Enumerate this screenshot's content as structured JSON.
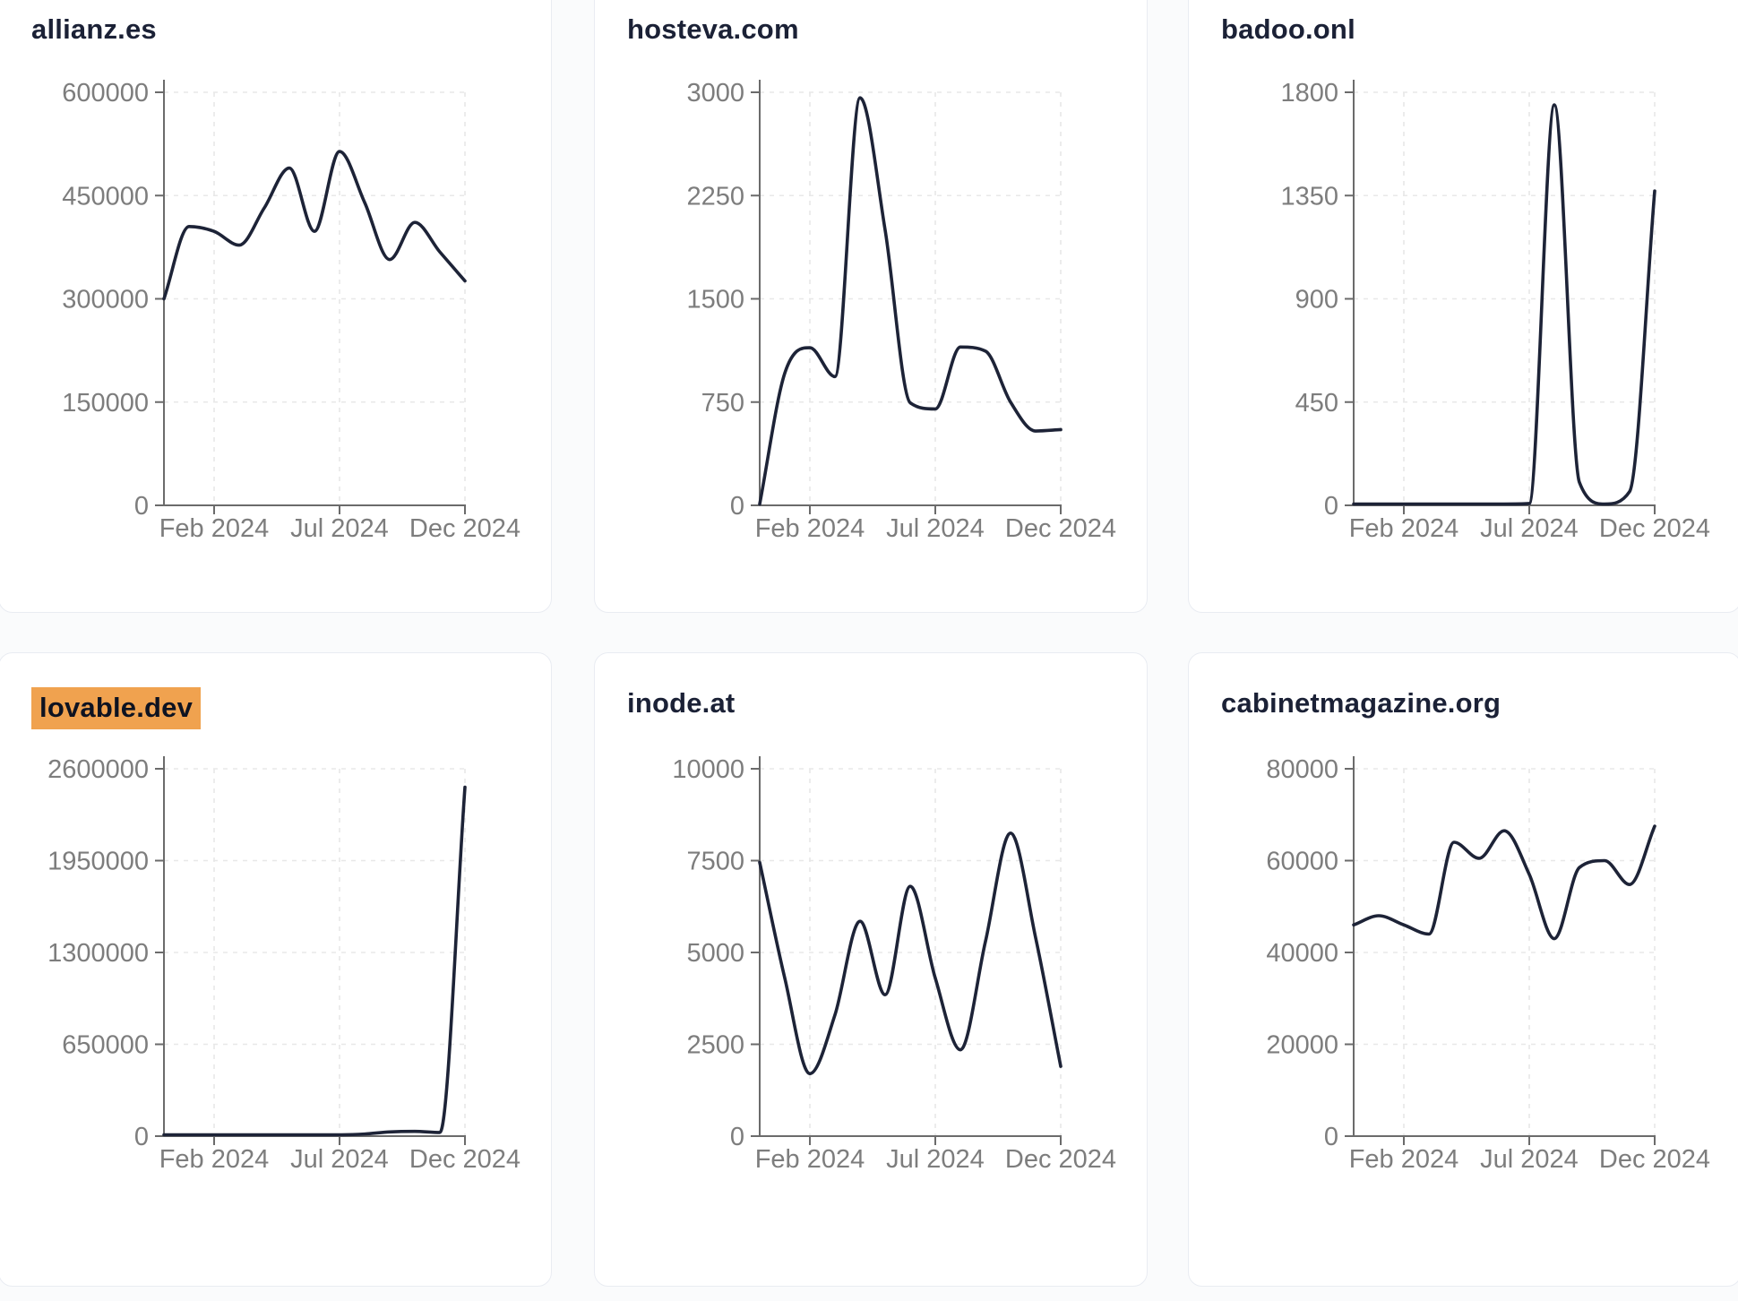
{
  "page": {
    "x_axis_tick_labels": [
      "Feb 2024",
      "Jul 2024",
      "Dec 2024"
    ]
  },
  "colors": {
    "line": "#1d2337",
    "title": "#1b2136",
    "highlight_bg": "#f0a24f",
    "highlight_text": "#0e1321",
    "axis": "#6b6b6b",
    "tick_label": "#7d7d7d",
    "grid": "#e8e8e8",
    "card_border": "#e9ecf2",
    "card_bg": "#ffffff",
    "page_bg": "#fafbfc"
  },
  "chart_data": [
    {
      "type": "line",
      "title": "allianz.es",
      "title_highlighted": false,
      "x": [
        "Dec 2023",
        "Jan 2024",
        "Feb 2024",
        "Mar 2024",
        "Apr 2024",
        "May 2024",
        "Jun 2024",
        "Jul 2024",
        "Aug 2024",
        "Sep 2024",
        "Oct 2024",
        "Nov 2024",
        "Dec 2024"
      ],
      "values": [
        300000,
        405000,
        398000,
        378000,
        432000,
        490000,
        398000,
        514000,
        440000,
        357000,
        411000,
        368000,
        326000
      ],
      "ylim": [
        0,
        600000
      ],
      "y_ticks": [
        0,
        150000,
        300000,
        450000,
        600000
      ],
      "x_tick_labels": [
        "Feb 2024",
        "Jul 2024",
        "Dec 2024"
      ],
      "x_tick_month_index": [
        2,
        7,
        12
      ],
      "grid": true,
      "legend": false
    },
    {
      "type": "line",
      "title": "hosteva.com",
      "title_highlighted": false,
      "x": [
        "Dec 2023",
        "Jan 2024",
        "Feb 2024",
        "Mar 2024",
        "Apr 2024",
        "May 2024",
        "Jun 2024",
        "Jul 2024",
        "Aug 2024",
        "Sep 2024",
        "Oct 2024",
        "Nov 2024",
        "Dec 2024"
      ],
      "values": [
        0,
        960,
        1145,
        935,
        2960,
        2000,
        745,
        700,
        1150,
        1120,
        750,
        540,
        550
      ],
      "ylim": [
        0,
        3000
      ],
      "y_ticks": [
        0,
        750,
        1500,
        2250,
        3000
      ],
      "x_tick_labels": [
        "Feb 2024",
        "Jul 2024",
        "Dec 2024"
      ],
      "x_tick_month_index": [
        2,
        7,
        12
      ],
      "grid": true,
      "legend": false
    },
    {
      "type": "line",
      "title": "badoo.onl",
      "title_highlighted": false,
      "x": [
        "Dec 2023",
        "Jan 2024",
        "Feb 2024",
        "Mar 2024",
        "Apr 2024",
        "May 2024",
        "Jun 2024",
        "Jul 2024",
        "Aug 2024",
        "Sep 2024",
        "Oct 2024",
        "Nov 2024",
        "Dec 2024"
      ],
      "values": [
        2,
        2,
        2,
        2,
        2,
        2,
        2,
        8,
        1745,
        100,
        5,
        60,
        1370
      ],
      "ylim": [
        0,
        1800
      ],
      "y_ticks": [
        0,
        450,
        900,
        1350,
        1800
      ],
      "x_tick_labels": [
        "Feb 2024",
        "Jul 2024",
        "Dec 2024"
      ],
      "x_tick_month_index": [
        2,
        7,
        12
      ],
      "grid": true,
      "legend": false
    },
    {
      "type": "line",
      "title": "lovable.dev",
      "title_highlighted": true,
      "x": [
        "Dec 2023",
        "Jan 2024",
        "Feb 2024",
        "Mar 2024",
        "Apr 2024",
        "May 2024",
        "Jun 2024",
        "Jul 2024",
        "Aug 2024",
        "Sep 2024",
        "Oct 2024",
        "Nov 2024",
        "Dec 2024"
      ],
      "values": [
        1500,
        2500,
        6000,
        9000,
        7000,
        5500,
        5000,
        6000,
        15000,
        30000,
        34000,
        26000,
        2470000
      ],
      "ylim": [
        0,
        2600000
      ],
      "y_ticks": [
        0,
        650000,
        1300000,
        1950000,
        2600000
      ],
      "x_tick_labels": [
        "Feb 2024",
        "Jul 2024",
        "Dec 2024"
      ],
      "x_tick_month_index": [
        2,
        7,
        12
      ],
      "grid": true,
      "legend": false
    },
    {
      "type": "line",
      "title": "inode.at",
      "title_highlighted": false,
      "x": [
        "Dec 2023",
        "Jan 2024",
        "Feb 2024",
        "Mar 2024",
        "Apr 2024",
        "May 2024",
        "Jun 2024",
        "Jul 2024",
        "Aug 2024",
        "Sep 2024",
        "Oct 2024",
        "Nov 2024",
        "Dec 2024"
      ],
      "values": [
        7450,
        4300,
        1700,
        3300,
        5850,
        3850,
        6800,
        4300,
        2350,
        5300,
        8250,
        5400,
        1900
      ],
      "ylim": [
        0,
        10000
      ],
      "y_ticks": [
        0,
        2500,
        5000,
        7500,
        10000
      ],
      "x_tick_labels": [
        "Feb 2024",
        "Jul 2024",
        "Dec 2024"
      ],
      "x_tick_month_index": [
        2,
        7,
        12
      ],
      "grid": true,
      "legend": false
    },
    {
      "type": "line",
      "title": "cabinetmagazine.org",
      "title_highlighted": false,
      "x": [
        "Dec 2023",
        "Jan 2024",
        "Feb 2024",
        "Mar 2024",
        "Apr 2024",
        "May 2024",
        "Jun 2024",
        "Jul 2024",
        "Aug 2024",
        "Sep 2024",
        "Oct 2024",
        "Nov 2024",
        "Dec 2024"
      ],
      "values": [
        46000,
        48000,
        46000,
        44000,
        64000,
        60500,
        66500,
        57000,
        43000,
        58500,
        60000,
        54800,
        67500
      ],
      "ylim": [
        0,
        80000
      ],
      "y_ticks": [
        0,
        20000,
        40000,
        60000,
        80000
      ],
      "x_tick_labels": [
        "Feb 2024",
        "Jul 2024",
        "Dec 2024"
      ],
      "x_tick_month_index": [
        2,
        7,
        12
      ],
      "grid": true,
      "legend": false
    }
  ]
}
